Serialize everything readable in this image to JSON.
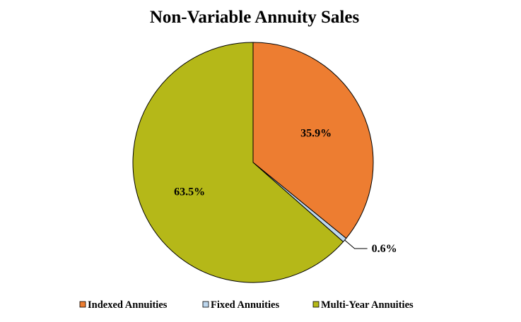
{
  "chart_data": {
    "type": "pie",
    "title": "Non-Variable Annuity Sales",
    "legend_position": "bottom",
    "start": "12 o'clock",
    "direction": "clockwise",
    "slices": [
      {
        "name": "Indexed Annuities",
        "value": 35.9,
        "label": "35.9%",
        "color": "#ED7D31"
      },
      {
        "name": "Fixed Annuities",
        "value": 0.6,
        "label": "0.6%",
        "color": "#BDD7EE"
      },
      {
        "name": "Multi-Year Annuities",
        "value": 63.5,
        "label": "63.5%",
        "color": "#B5B818"
      }
    ]
  }
}
